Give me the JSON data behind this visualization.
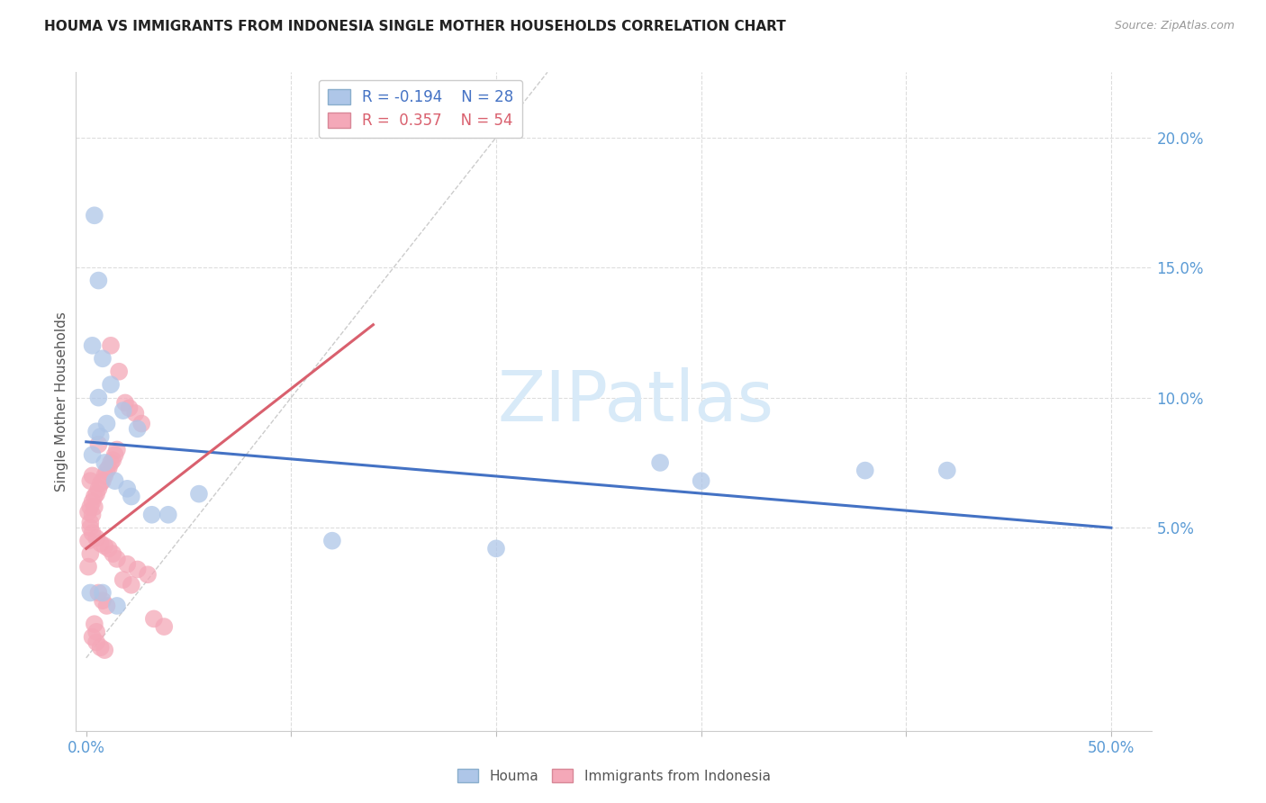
{
  "title": "HOUMA VS IMMIGRANTS FROM INDONESIA SINGLE MOTHER HOUSEHOLDS CORRELATION CHART",
  "source": "Source: ZipAtlas.com",
  "ylabel": "Single Mother Households",
  "houma_color": "#aec6e8",
  "indonesia_color": "#f4a8b8",
  "houma_line_color": "#4472c4",
  "indonesia_line_color": "#d9606e",
  "diagonal_color": "#cccccc",
  "background_color": "#ffffff",
  "grid_color": "#dddddd",
  "watermark_color": "#d8eaf8",
  "tick_color": "#5b9bd5",
  "houma_x": [
    0.004,
    0.003,
    0.006,
    0.008,
    0.012,
    0.018,
    0.025,
    0.005,
    0.007,
    0.003,
    0.009,
    0.014,
    0.02,
    0.022,
    0.032,
    0.04,
    0.055,
    0.38,
    0.42,
    0.002,
    0.008,
    0.006,
    0.01,
    0.28,
    0.3,
    0.12,
    0.2,
    0.015
  ],
  "houma_y": [
    0.17,
    0.12,
    0.145,
    0.115,
    0.105,
    0.095,
    0.088,
    0.087,
    0.085,
    0.078,
    0.075,
    0.068,
    0.065,
    0.062,
    0.055,
    0.055,
    0.063,
    0.072,
    0.072,
    0.025,
    0.025,
    0.1,
    0.09,
    0.075,
    0.068,
    0.045,
    0.042,
    0.02
  ],
  "indonesia_x": [
    0.001,
    0.002,
    0.003,
    0.004,
    0.005,
    0.006,
    0.007,
    0.008,
    0.009,
    0.01,
    0.011,
    0.012,
    0.013,
    0.014,
    0.015,
    0.003,
    0.005,
    0.007,
    0.009,
    0.011,
    0.013,
    0.015,
    0.02,
    0.025,
    0.03,
    0.018,
    0.022,
    0.006,
    0.008,
    0.01,
    0.004,
    0.003,
    0.005,
    0.007,
    0.009,
    0.012,
    0.016,
    0.019,
    0.021,
    0.024,
    0.027,
    0.033,
    0.038,
    0.002,
    0.006,
    0.003,
    0.004,
    0.005,
    0.002,
    0.003,
    0.001,
    0.002,
    0.001,
    0.002
  ],
  "indonesia_y": [
    0.056,
    0.058,
    0.06,
    0.062,
    0.063,
    0.065,
    0.067,
    0.068,
    0.07,
    0.072,
    0.073,
    0.075,
    0.076,
    0.078,
    0.08,
    0.048,
    0.046,
    0.044,
    0.043,
    0.042,
    0.04,
    0.038,
    0.036,
    0.034,
    0.032,
    0.03,
    0.028,
    0.025,
    0.022,
    0.02,
    0.013,
    0.008,
    0.006,
    0.004,
    0.003,
    0.12,
    0.11,
    0.098,
    0.096,
    0.094,
    0.09,
    0.015,
    0.012,
    0.05,
    0.082,
    0.055,
    0.058,
    0.01,
    0.052,
    0.07,
    0.045,
    0.068,
    0.035,
    0.04
  ],
  "houma_line_x0": 0.0,
  "houma_line_x1": 0.5,
  "houma_line_y0": 0.083,
  "houma_line_y1": 0.05,
  "indonesia_line_x0": 0.0,
  "indonesia_line_x1": 0.14,
  "indonesia_line_y0": 0.042,
  "indonesia_line_y1": 0.128,
  "xlim_min": -0.005,
  "xlim_max": 0.52,
  "ylim_min": -0.028,
  "ylim_max": 0.225
}
